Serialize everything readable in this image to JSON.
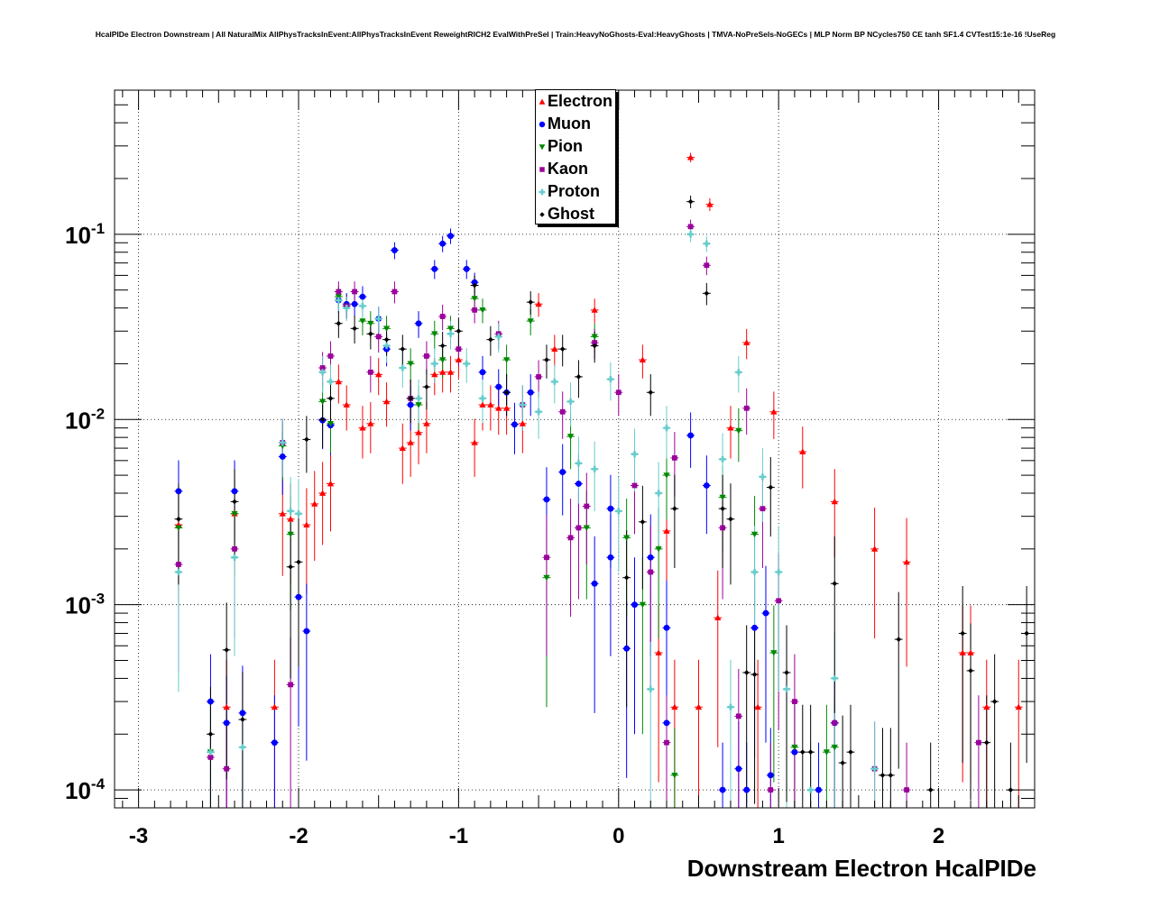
{
  "title": "HcalPIDe Electron Downstream | All NaturalMix AllPhysTracksInEvent:AllPhysTracksInEvent ReweightRICH2 EvalWithPreSel | Train:HeavyNoGhosts-Eval:HeavyGhosts | TMVA-NoPreSels-NoGECs | MLP Norm BP NCycles750 CE tanh SF1.4 CVTest15:1e-16 !UseReg",
  "chart_data": {
    "type": "scatter",
    "xlabel": "Downstream Electron HcalPIDe",
    "ylabel": "",
    "xlim": [
      -3.15,
      2.6
    ],
    "ylim": [
      8e-05,
      0.6
    ],
    "y_scale": "log",
    "grid": true,
    "legend_position": "top-center",
    "x_tick_labels": [
      "-3",
      "-2",
      "-1",
      "0",
      "1",
      "2"
    ],
    "x_ticks": [
      -3,
      -2,
      -1,
      0,
      1,
      2
    ],
    "y_tick_labels": [
      {
        "base": "10",
        "exp": "-1",
        "value": 0.1
      },
      {
        "base": "10",
        "exp": "-2",
        "value": 0.01
      },
      {
        "base": "10",
        "exp": "-3",
        "value": 0.001
      },
      {
        "base": "10",
        "exp": "-4",
        "value": 0.0001
      }
    ],
    "series": [
      {
        "name": "Electron",
        "color": "#ff0000",
        "marker": "triangle-up",
        "points": [
          [
            -2.75,
            0.0027
          ],
          [
            -2.45,
            0.00028
          ],
          [
            -2.4,
            0.0031
          ],
          [
            -2.15,
            0.00028
          ],
          [
            -2.1,
            0.0031
          ],
          [
            -2.05,
            0.0029
          ],
          [
            -1.95,
            0.0027
          ],
          [
            -1.9,
            0.0035
          ],
          [
            -1.85,
            0.004
          ],
          [
            -1.8,
            0.0045
          ],
          [
            -1.75,
            0.016
          ],
          [
            -1.7,
            0.012
          ],
          [
            -1.6,
            0.009
          ],
          [
            -1.55,
            0.0095
          ],
          [
            -1.5,
            0.0175
          ],
          [
            -1.45,
            0.0125
          ],
          [
            -1.35,
            0.007
          ],
          [
            -1.3,
            0.0075
          ],
          [
            -1.25,
            0.0085
          ],
          [
            -1.2,
            0.0095
          ],
          [
            -1.15,
            0.0175
          ],
          [
            -1.1,
            0.018
          ],
          [
            -1.05,
            0.018
          ],
          [
            -1.0,
            0.021
          ],
          [
            -0.9,
            0.0075
          ],
          [
            -0.85,
            0.012
          ],
          [
            -0.8,
            0.012
          ],
          [
            -0.75,
            0.0115
          ],
          [
            -0.7,
            0.0115
          ],
          [
            -0.6,
            0.0095
          ],
          [
            -0.5,
            0.042
          ],
          [
            -0.4,
            0.024
          ],
          [
            -0.15,
            0.039
          ],
          [
            0.15,
            0.021
          ],
          [
            0.25,
            0.00055
          ],
          [
            0.3,
            0.0025
          ],
          [
            0.35,
            0.00028
          ],
          [
            0.45,
            0.26
          ],
          [
            0.5,
            0.00028
          ],
          [
            0.57,
            0.145
          ],
          [
            0.62,
            0.00085
          ],
          [
            0.7,
            0.009
          ],
          [
            0.8,
            0.026
          ],
          [
            0.87,
            0.00028
          ],
          [
            0.97,
            0.011
          ],
          [
            1.15,
            0.0067
          ],
          [
            1.35,
            0.0036
          ],
          [
            1.6,
            0.002
          ],
          [
            1.8,
            0.0017
          ],
          [
            2.15,
            0.00055
          ],
          [
            2.2,
            0.00055
          ],
          [
            2.3,
            0.00028
          ],
          [
            2.5,
            0.00028
          ]
        ]
      },
      {
        "name": "Muon",
        "color": "#0000ff",
        "marker": "circle",
        "points": [
          [
            -2.75,
            0.0041
          ],
          [
            -2.55,
            0.0003
          ],
          [
            -2.45,
            0.00023
          ],
          [
            -2.4,
            0.0041
          ],
          [
            -2.35,
            0.00026
          ],
          [
            -2.1,
            0.0063
          ],
          [
            -2.15,
            0.00018
          ],
          [
            -2.0,
            0.0011
          ],
          [
            -1.95,
            0.00072
          ],
          [
            -1.85,
            0.0099
          ],
          [
            -1.8,
            0.0093
          ],
          [
            -1.75,
            0.044
          ],
          [
            -1.7,
            0.042
          ],
          [
            -1.65,
            0.042
          ],
          [
            -1.6,
            0.046
          ],
          [
            -1.5,
            0.035
          ],
          [
            -1.45,
            0.024
          ],
          [
            -1.4,
            0.082
          ],
          [
            -1.3,
            0.012
          ],
          [
            -1.25,
            0.033
          ],
          [
            -1.15,
            0.065
          ],
          [
            -1.1,
            0.089
          ],
          [
            -1.05,
            0.098
          ],
          [
            -0.95,
            0.065
          ],
          [
            -0.9,
            0.055
          ],
          [
            -0.85,
            0.018
          ],
          [
            -0.75,
            0.015
          ],
          [
            -0.7,
            0.014
          ],
          [
            -0.65,
            0.0094
          ],
          [
            -0.55,
            0.014
          ],
          [
            -0.45,
            0.0037
          ],
          [
            -0.35,
            0.0052
          ],
          [
            -0.25,
            0.0045
          ],
          [
            -0.15,
            0.0013
          ],
          [
            -0.05,
            0.0033
          ],
          [
            -0.05,
            0.0018
          ],
          [
            0.05,
            0.00058
          ],
          [
            0.1,
            0.001
          ],
          [
            0.2,
            0.0018
          ],
          [
            0.3,
            0.00075
          ],
          [
            0.3,
            0.00023
          ],
          [
            0.45,
            0.0082
          ],
          [
            0.55,
            0.0044
          ],
          [
            0.65,
            0.0001
          ],
          [
            0.75,
            0.00013
          ],
          [
            0.8,
            0.0001
          ],
          [
            0.85,
            0.00075
          ],
          [
            0.92,
            0.0009
          ],
          [
            0.95,
            0.00012
          ],
          [
            1.1,
            0.00016
          ],
          [
            1.25,
            0.0001
          ],
          [
            1.35,
            0.00023
          ]
        ]
      },
      {
        "name": "Pion",
        "color": "#008800",
        "marker": "triangle-down",
        "points": [
          [
            -2.75,
            0.0026
          ],
          [
            -2.55,
            0.00016
          ],
          [
            -2.4,
            0.0031
          ],
          [
            -2.1,
            0.0072
          ],
          [
            -2.05,
            0.0024
          ],
          [
            -1.85,
            0.0125
          ],
          [
            -1.8,
            0.0095
          ],
          [
            -1.75,
            0.046
          ],
          [
            -1.7,
            0.041
          ],
          [
            -1.6,
            0.034
          ],
          [
            -1.55,
            0.033
          ],
          [
            -1.45,
            0.031
          ],
          [
            -1.3,
            0.02
          ],
          [
            -1.25,
            0.012
          ],
          [
            -1.15,
            0.029
          ],
          [
            -1.1,
            0.021
          ],
          [
            -1.05,
            0.031
          ],
          [
            -0.9,
            0.045
          ],
          [
            -0.85,
            0.039
          ],
          [
            -0.7,
            0.021
          ],
          [
            -0.55,
            0.034
          ],
          [
            -0.45,
            0.0014
          ],
          [
            -0.3,
            0.0081
          ],
          [
            -0.2,
            0.0026
          ],
          [
            -0.15,
            0.028
          ],
          [
            0.05,
            0.0023
          ],
          [
            0.15,
            0.001
          ],
          [
            0.25,
            0.002
          ],
          [
            0.3,
            0.005
          ],
          [
            0.35,
            0.00012
          ],
          [
            0.65,
            0.0038
          ],
          [
            0.75,
            0.0087
          ],
          [
            0.85,
            0.0024
          ],
          [
            0.97,
            0.00055
          ],
          [
            1.1,
            0.00017
          ],
          [
            1.3,
            0.00016
          ],
          [
            1.35,
            0.00017
          ]
        ]
      },
      {
        "name": "Kaon",
        "color": "#990099",
        "marker": "square",
        "points": [
          [
            -2.75,
            0.00165
          ],
          [
            -2.55,
            0.00015
          ],
          [
            -2.45,
            0.00013
          ],
          [
            -2.4,
            0.002
          ],
          [
            -2.1,
            0.0075
          ],
          [
            -2.05,
            0.00037
          ],
          [
            -1.85,
            0.019
          ],
          [
            -1.8,
            0.022
          ],
          [
            -1.75,
            0.049
          ],
          [
            -1.7,
            0.041
          ],
          [
            -1.65,
            0.049
          ],
          [
            -1.55,
            0.018
          ],
          [
            -1.5,
            0.028
          ],
          [
            -1.4,
            0.049
          ],
          [
            -1.3,
            0.013
          ],
          [
            -1.2,
            0.022
          ],
          [
            -1.1,
            0.036
          ],
          [
            -1.0,
            0.024
          ],
          [
            -0.9,
            0.039
          ],
          [
            -0.75,
            0.029
          ],
          [
            -0.6,
            0.012
          ],
          [
            -0.5,
            0.017
          ],
          [
            -0.45,
            0.0018
          ],
          [
            -0.35,
            0.011
          ],
          [
            -0.3,
            0.0023
          ],
          [
            -0.25,
            0.0026
          ],
          [
            -0.2,
            0.0034
          ],
          [
            -0.15,
            0.026
          ],
          [
            0.0,
            0.014
          ],
          [
            0.1,
            0.0044
          ],
          [
            0.2,
            0.0015
          ],
          [
            0.3,
            0.00018
          ],
          [
            0.35,
            0.0062
          ],
          [
            0.45,
            0.11
          ],
          [
            0.55,
            0.068
          ],
          [
            0.65,
            0.0026
          ],
          [
            0.75,
            0.00025
          ],
          [
            0.8,
            0.0115
          ],
          [
            0.9,
            0.0033
          ],
          [
            0.95,
            0.0001
          ],
          [
            1.0,
            0.00105
          ],
          [
            1.1,
            0.0003
          ],
          [
            1.35,
            0.00023
          ],
          [
            1.6,
            0.00013
          ],
          [
            1.8,
            0.0001
          ],
          [
            2.25,
            0.00018
          ]
        ]
      },
      {
        "name": "Proton",
        "color": "#66cccc",
        "marker": "cross",
        "points": [
          [
            -2.75,
            0.0015
          ],
          [
            -2.55,
            0.00016
          ],
          [
            -2.4,
            0.0018
          ],
          [
            -2.35,
            0.00017
          ],
          [
            -2.1,
            0.0075
          ],
          [
            -2.05,
            0.0032
          ],
          [
            -2.0,
            0.0031
          ],
          [
            -1.85,
            0.018
          ],
          [
            -1.8,
            0.016
          ],
          [
            -1.75,
            0.044
          ],
          [
            -1.7,
            0.04
          ],
          [
            -1.6,
            0.041
          ],
          [
            -1.5,
            0.035
          ],
          [
            -1.45,
            0.025
          ],
          [
            -1.35,
            0.019
          ],
          [
            -1.25,
            0.013
          ],
          [
            -1.15,
            0.02
          ],
          [
            -1.05,
            0.029
          ],
          [
            -0.95,
            0.02
          ],
          [
            -0.85,
            0.013
          ],
          [
            -0.75,
            0.028
          ],
          [
            -0.6,
            0.012
          ],
          [
            -0.5,
            0.011
          ],
          [
            -0.4,
            0.016
          ],
          [
            -0.3,
            0.0125
          ],
          [
            -0.25,
            0.0058
          ],
          [
            -0.15,
            0.0054
          ],
          [
            -0.05,
            0.0165
          ],
          [
            0.0,
            0.0032
          ],
          [
            0.1,
            0.0065
          ],
          [
            0.2,
            0.00035
          ],
          [
            0.25,
            0.004
          ],
          [
            0.3,
            0.009
          ],
          [
            0.45,
            0.1
          ],
          [
            0.55,
            0.089
          ],
          [
            0.65,
            0.0061
          ],
          [
            0.7,
            0.00028
          ],
          [
            0.75,
            0.018
          ],
          [
            0.85,
            0.0015
          ],
          [
            0.9,
            0.0049
          ],
          [
            1.0,
            0.0015
          ],
          [
            1.05,
            0.00035
          ],
          [
            1.2,
            0.0001
          ],
          [
            1.35,
            0.0004
          ],
          [
            1.6,
            0.00013
          ]
        ]
      },
      {
        "name": "Ghost",
        "color": "#000000",
        "marker": "diamond",
        "points": [
          [
            -2.75,
            0.0029
          ],
          [
            -2.55,
            0.0002
          ],
          [
            -2.45,
            0.00057
          ],
          [
            -2.4,
            0.0036
          ],
          [
            -2.35,
            0.00024
          ],
          [
            -2.05,
            0.0016
          ],
          [
            -2.0,
            0.0017
          ],
          [
            -1.95,
            0.0078
          ],
          [
            -1.85,
            0.01
          ],
          [
            -1.8,
            0.013
          ],
          [
            -1.75,
            0.033
          ],
          [
            -1.65,
            0.031
          ],
          [
            -1.55,
            0.029
          ],
          [
            -1.45,
            0.027
          ],
          [
            -1.35,
            0.024
          ],
          [
            -1.3,
            0.013
          ],
          [
            -1.2,
            0.015
          ],
          [
            -1.1,
            0.025
          ],
          [
            -1.0,
            0.03
          ],
          [
            -0.9,
            0.053
          ],
          [
            -0.8,
            0.027
          ],
          [
            -0.7,
            0.014
          ],
          [
            -0.55,
            0.043
          ],
          [
            -0.45,
            0.021
          ],
          [
            -0.35,
            0.024
          ],
          [
            -0.25,
            0.017
          ],
          [
            -0.15,
            0.025
          ],
          [
            0.05,
            0.0014
          ],
          [
            0.15,
            0.0028
          ],
          [
            0.2,
            0.014
          ],
          [
            0.35,
            0.0033
          ],
          [
            0.45,
            0.15
          ],
          [
            0.55,
            0.048
          ],
          [
            0.65,
            0.0033
          ],
          [
            0.7,
            0.0029
          ],
          [
            0.8,
            0.00043
          ],
          [
            0.85,
            0.00042
          ],
          [
            0.95,
            0.0043
          ],
          [
            1.05,
            0.00043
          ],
          [
            1.15,
            0.00016
          ],
          [
            1.2,
            0.00016
          ],
          [
            1.35,
            0.0013
          ],
          [
            1.4,
            0.00014
          ],
          [
            1.45,
            0.00016
          ],
          [
            1.65,
            0.00012
          ],
          [
            1.7,
            0.00012
          ],
          [
            1.75,
            0.00065
          ],
          [
            1.95,
            0.0001
          ],
          [
            2.15,
            0.0007
          ],
          [
            2.2,
            0.00044
          ],
          [
            2.3,
            0.00018
          ],
          [
            2.35,
            0.0003
          ],
          [
            2.45,
            0.0001
          ],
          [
            2.55,
            0.0007
          ]
        ]
      }
    ]
  }
}
